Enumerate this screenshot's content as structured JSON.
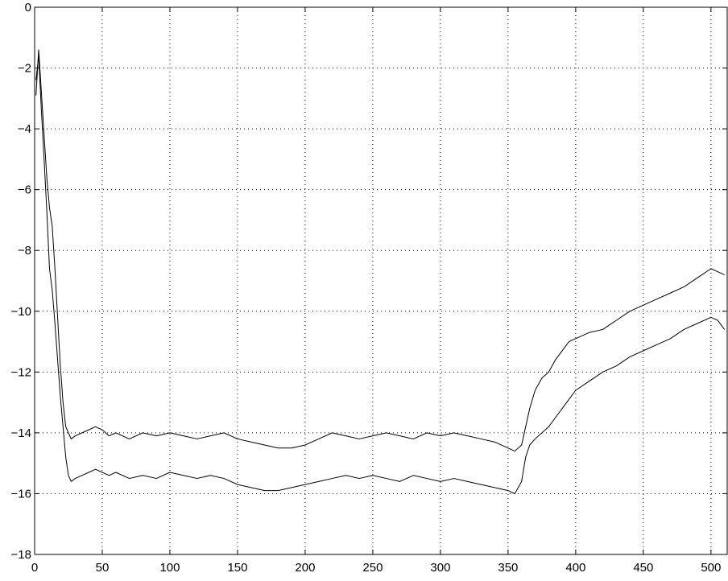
{
  "chart_data": {
    "type": "line",
    "title": "",
    "xlabel": "",
    "ylabel": "",
    "xlim": [
      0,
      512
    ],
    "ylim": [
      -18,
      0
    ],
    "grid": true,
    "x_ticks": [
      0,
      50,
      100,
      150,
      200,
      250,
      300,
      350,
      400,
      450,
      500
    ],
    "y_ticks": [
      0,
      -2,
      -4,
      -6,
      -8,
      -10,
      -12,
      -14,
      -16,
      -18
    ],
    "x_tick_labels": [
      "0",
      "50",
      "100",
      "150",
      "200",
      "250",
      "300",
      "350",
      "400",
      "450",
      "500"
    ],
    "y_tick_labels": [
      "0",
      "−2",
      "−4",
      "−6",
      "−8",
      "−10",
      "−12",
      "−14",
      "−16",
      "−18"
    ],
    "series": [
      {
        "x": [
          1,
          3,
          5,
          7,
          9,
          11,
          13,
          15,
          17,
          19,
          21,
          23,
          25,
          27,
          30,
          35,
          40,
          45,
          50,
          55,
          60,
          70,
          80,
          90,
          100,
          110,
          120,
          130,
          140,
          150,
          160,
          170,
          180,
          190,
          200,
          210,
          220,
          230,
          240,
          250,
          260,
          270,
          280,
          290,
          300,
          310,
          320,
          330,
          340,
          350,
          355,
          360,
          363,
          366,
          370,
          375,
          380,
          385,
          390,
          395,
          400,
          410,
          420,
          430,
          440,
          450,
          460,
          470,
          480,
          490,
          500,
          505,
          510
        ],
        "y": [
          -2.9,
          -1.4,
          -2.8,
          -4.2,
          -5.6,
          -6.6,
          -7.2,
          -8.6,
          -10.2,
          -11.8,
          -13.0,
          -13.8,
          -14.0,
          -14.2,
          -14.1,
          -14.0,
          -13.9,
          -13.8,
          -13.9,
          -14.1,
          -14.0,
          -14.2,
          -14.0,
          -14.1,
          -14.0,
          -14.1,
          -14.2,
          -14.1,
          -14.0,
          -14.2,
          -14.3,
          -14.4,
          -14.5,
          -14.5,
          -14.4,
          -14.2,
          -14.0,
          -14.1,
          -14.2,
          -14.1,
          -14.0,
          -14.1,
          -14.2,
          -14.0,
          -14.1,
          -14.0,
          -14.1,
          -14.2,
          -14.3,
          -14.5,
          -14.6,
          -14.4,
          -13.8,
          -13.2,
          -12.6,
          -12.2,
          -12.0,
          -11.6,
          -11.3,
          -11.0,
          -10.9,
          -10.7,
          -10.6,
          -10.3,
          -10.0,
          -9.8,
          -9.6,
          -9.4,
          -9.2,
          -8.9,
          -8.6,
          -8.7,
          -8.8
        ]
      },
      {
        "x": [
          1,
          3,
          5,
          7,
          9,
          11,
          13,
          15,
          17,
          19,
          21,
          23,
          25,
          27,
          30,
          35,
          40,
          45,
          50,
          55,
          60,
          70,
          80,
          90,
          100,
          110,
          120,
          130,
          140,
          150,
          160,
          170,
          180,
          190,
          200,
          210,
          220,
          230,
          240,
          250,
          260,
          270,
          280,
          290,
          300,
          310,
          320,
          330,
          340,
          350,
          355,
          360,
          363,
          366,
          370,
          375,
          380,
          385,
          390,
          395,
          400,
          410,
          420,
          430,
          440,
          450,
          460,
          470,
          480,
          490,
          500,
          505,
          510
        ],
        "y": [
          -2.4,
          -1.6,
          -3.4,
          -5.0,
          -6.7,
          -8.6,
          -9.3,
          -10.4,
          -11.6,
          -12.8,
          -13.8,
          -14.8,
          -15.4,
          -15.6,
          -15.5,
          -15.4,
          -15.3,
          -15.2,
          -15.3,
          -15.4,
          -15.3,
          -15.5,
          -15.4,
          -15.5,
          -15.3,
          -15.4,
          -15.5,
          -15.4,
          -15.5,
          -15.7,
          -15.8,
          -15.9,
          -15.9,
          -15.8,
          -15.7,
          -15.6,
          -15.5,
          -15.4,
          -15.5,
          -15.4,
          -15.5,
          -15.6,
          -15.4,
          -15.5,
          -15.6,
          -15.5,
          -15.6,
          -15.7,
          -15.8,
          -15.9,
          -16.0,
          -15.6,
          -14.8,
          -14.4,
          -14.2,
          -14.0,
          -13.8,
          -13.5,
          -13.2,
          -12.9,
          -12.6,
          -12.3,
          -12.0,
          -11.8,
          -11.5,
          -11.3,
          -11.1,
          -10.9,
          -10.6,
          -10.4,
          -10.2,
          -10.3,
          -10.6
        ]
      }
    ]
  }
}
